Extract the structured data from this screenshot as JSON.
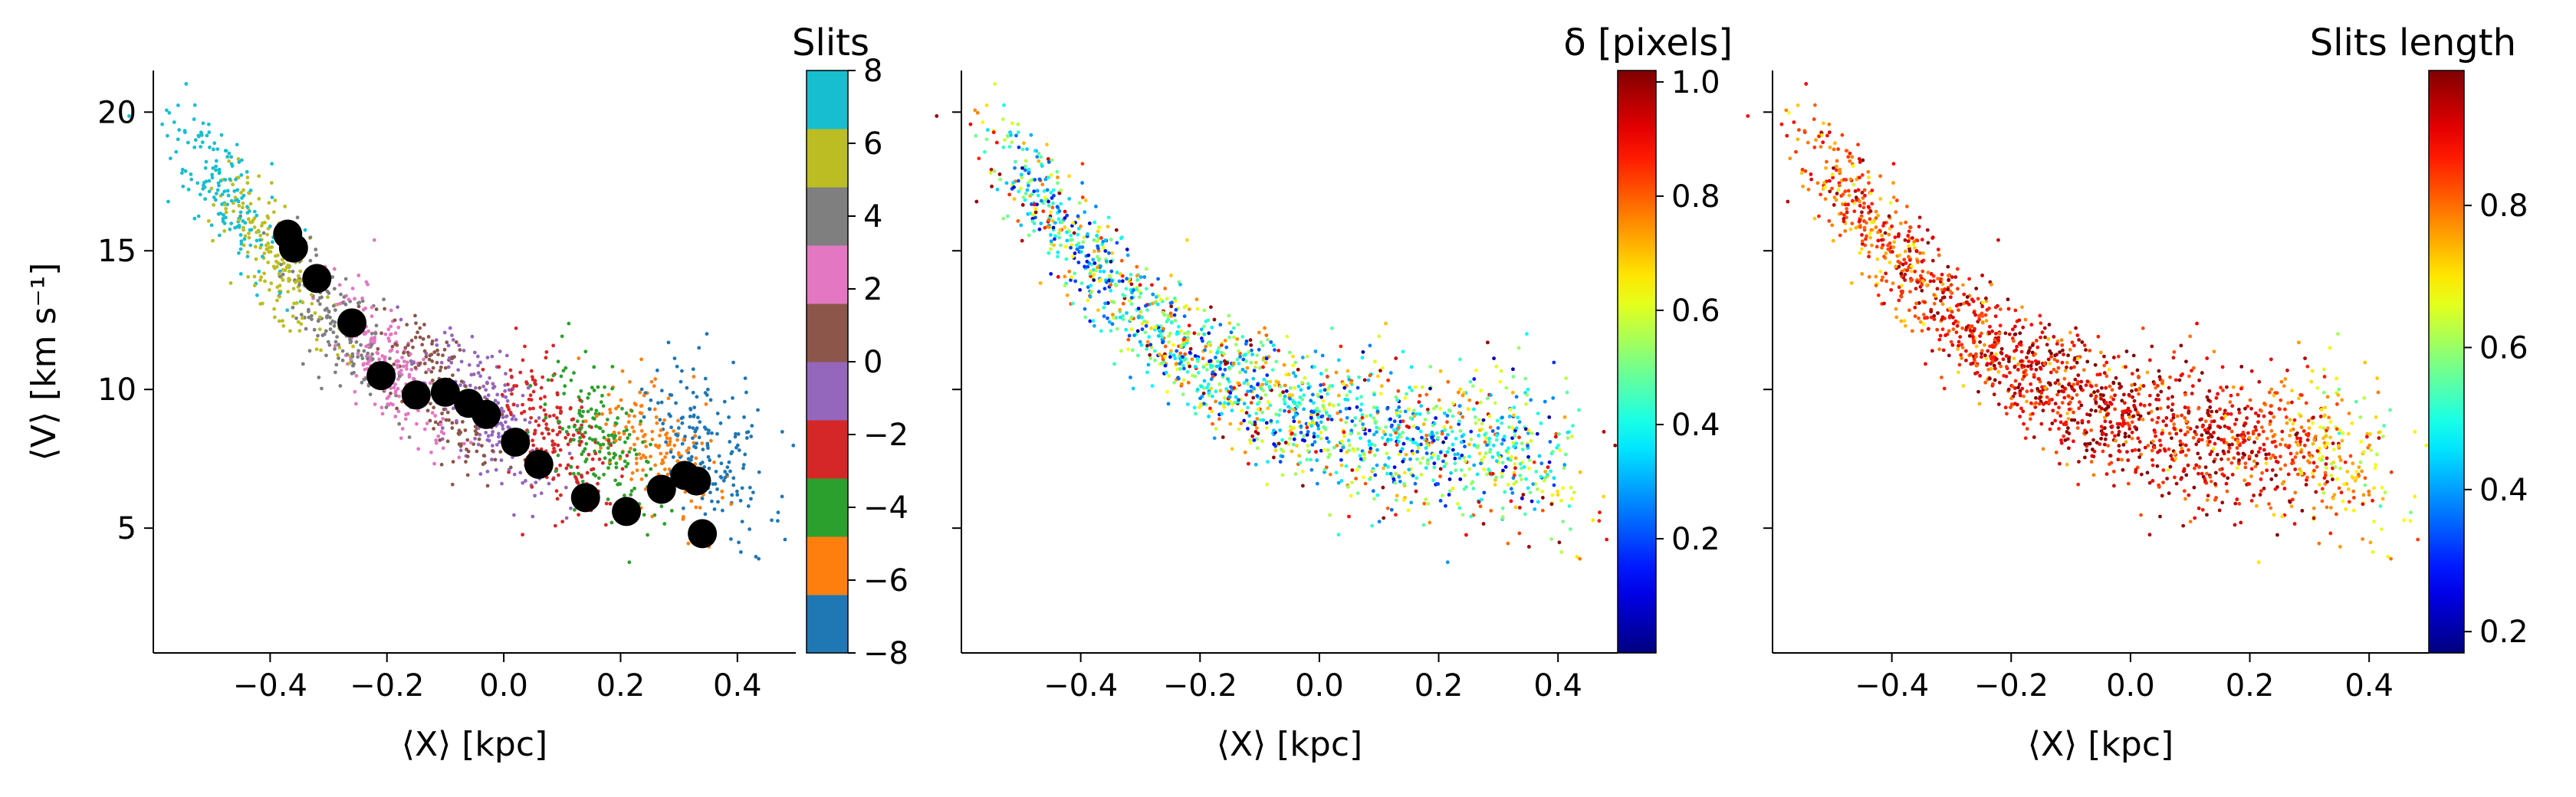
{
  "chart_data": [
    {
      "type": "scatter",
      "xlabel": "⟨X⟩ [kpc]",
      "ylabel": "⟨V⟩ [km s⁻¹]",
      "xlim": [
        -0.6,
        0.5
      ],
      "ylim": [
        0.5,
        21.5
      ],
      "xticks": [
        -0.4,
        -0.2,
        0.0,
        0.2,
        0.4
      ],
      "xtick_labels": [
        "−0.4",
        "−0.2",
        "0.0",
        "0.2",
        "0.4"
      ],
      "yticks": [
        5,
        10,
        15,
        20
      ],
      "ytick_labels": [
        "5",
        "10",
        "15",
        "20"
      ],
      "colorbar": {
        "title": "Slits",
        "range": [
          -8,
          8
        ],
        "ticks": [
          -8,
          -6,
          -4,
          -2,
          0,
          2,
          4,
          6,
          8
        ],
        "tick_labels": [
          "−8",
          "−6",
          "−4",
          "−2",
          "0",
          "2",
          "4",
          "6",
          "8"
        ],
        "bands": [
          "#1f77b4",
          "#ff7f0e",
          "#2ca02c",
          "#d62728",
          "#9467bd",
          "#8c564b",
          "#e377c2",
          "#7f7f7f",
          "#bcbd22",
          "#17becf"
        ]
      },
      "slit_means": {
        "color": "#000000",
        "x": [
          -0.37,
          -0.36,
          -0.32,
          -0.26,
          -0.21,
          -0.15,
          -0.1,
          -0.06,
          -0.03,
          0.02,
          0.06,
          0.14,
          0.21,
          0.27,
          0.31,
          0.33,
          0.34
        ],
        "y": [
          15.6,
          15.1,
          14.0,
          12.4,
          10.5,
          9.8,
          9.9,
          9.5,
          9.1,
          8.1,
          7.3,
          6.1,
          5.6,
          6.4,
          6.9,
          6.7,
          4.8
        ]
      }
    },
    {
      "type": "scatter",
      "xlabel": "⟨X⟩ [kpc]",
      "xlim": [
        -0.6,
        0.5
      ],
      "ylim": [
        0.5,
        21.5
      ],
      "xticks": [
        -0.4,
        -0.2,
        0.0,
        0.2,
        0.4
      ],
      "xtick_labels": [
        "−0.4",
        "−0.2",
        "0.0",
        "0.2",
        "0.4"
      ],
      "colorbar": {
        "title": "δ [pixels]",
        "colormap": "jet",
        "range": [
          0.0,
          1.02
        ],
        "ticks": [
          0.2,
          0.4,
          0.6,
          0.8,
          1.0
        ],
        "tick_labels": [
          "0.2",
          "0.4",
          "0.6",
          "0.8",
          "1.0"
        ]
      }
    },
    {
      "type": "scatter",
      "xlabel": "⟨X⟩ [kpc]",
      "xlim": [
        -0.6,
        0.5
      ],
      "ylim": [
        0.5,
        21.5
      ],
      "xticks": [
        -0.4,
        -0.2,
        0.0,
        0.2,
        0.4
      ],
      "xtick_labels": [
        "−0.4",
        "−0.2",
        "0.0",
        "0.2",
        "0.4"
      ],
      "colorbar": {
        "title": "Slits length",
        "colormap": "jet",
        "range": [
          0.17,
          0.99
        ],
        "ticks": [
          0.2,
          0.4,
          0.6,
          0.8
        ],
        "tick_labels": [
          "0.2",
          "0.4",
          "0.6",
          "0.8"
        ]
      }
    }
  ]
}
